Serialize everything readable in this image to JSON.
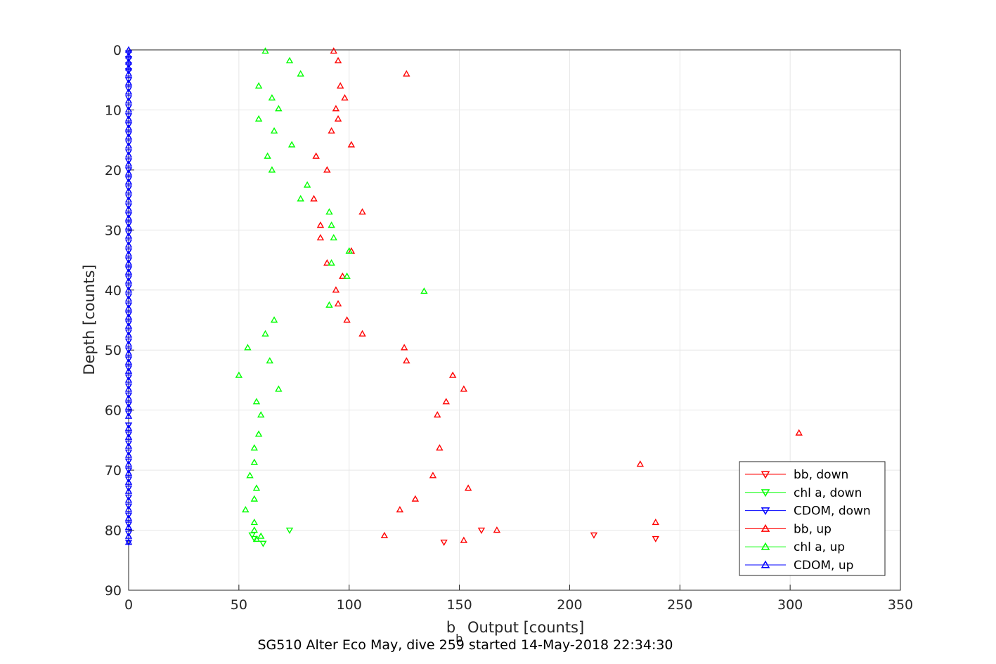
{
  "chart_data": {
    "type": "scatter",
    "title": "",
    "caption": "SG510 Alter Eco May, dive 259 started 14-May-2018 22:34:30",
    "xlabel_main": "b",
    "xlabel_sub": "b",
    "xlabel_rest": " Output [counts]",
    "ylabel": "Depth [counts]",
    "xlim": [
      0,
      350
    ],
    "ylim": [
      90,
      0
    ],
    "y_reversed": true,
    "grid": true,
    "legend_position": "bottom-right",
    "xticks": [
      0,
      50,
      100,
      150,
      200,
      250,
      300,
      350
    ],
    "yticks": [
      0,
      10,
      20,
      30,
      40,
      50,
      60,
      70,
      80,
      90
    ],
    "colors": {
      "red": "#ff0000",
      "green": "#00ff00",
      "blue": "#0000ff",
      "grid": "#e6e6e6",
      "axis": "#262626"
    },
    "series": [
      {
        "name": "bb, down",
        "marker": "down",
        "color": "#ff0000",
        "points": [
          [
            143,
            82.0
          ],
          [
            211,
            80.8
          ],
          [
            239,
            81.4
          ],
          [
            160,
            80.0
          ]
        ]
      },
      {
        "name": "chl a, down",
        "marker": "down",
        "color": "#00ff00",
        "points": [
          [
            57,
            81.4
          ],
          [
            61,
            82.2
          ],
          [
            73,
            80.0
          ],
          [
            56,
            80.8
          ]
        ]
      },
      {
        "name": "CDOM, down",
        "marker": "down",
        "color": "#0000ff",
        "points": [
          [
            0,
            0.5
          ],
          [
            0,
            1.5
          ],
          [
            0,
            2.5
          ],
          [
            0,
            3.5
          ],
          [
            0,
            5
          ],
          [
            0,
            6.5
          ],
          [
            0,
            8
          ],
          [
            0,
            9.5
          ],
          [
            0,
            11
          ],
          [
            0,
            12.5
          ],
          [
            0,
            14
          ],
          [
            0,
            15.5
          ],
          [
            0,
            17
          ],
          [
            0,
            18.5
          ],
          [
            0,
            20
          ],
          [
            0,
            21.5
          ],
          [
            0,
            23
          ],
          [
            0,
            24.5
          ],
          [
            0,
            26
          ],
          [
            0,
            27.5
          ],
          [
            0,
            29
          ],
          [
            0,
            30.5
          ],
          [
            0,
            32
          ],
          [
            0,
            33.5
          ],
          [
            0,
            35
          ],
          [
            0,
            36.5
          ],
          [
            0,
            38
          ],
          [
            0,
            39.5
          ],
          [
            0,
            41
          ],
          [
            0,
            42.5
          ],
          [
            0,
            44
          ],
          [
            0,
            45.5
          ],
          [
            0,
            47
          ],
          [
            0,
            48.5
          ],
          [
            0,
            50
          ],
          [
            0,
            51.5
          ],
          [
            0,
            53
          ],
          [
            0,
            54.5
          ],
          [
            0,
            56
          ],
          [
            0,
            57.5
          ],
          [
            0,
            59
          ],
          [
            0,
            60.5
          ],
          [
            0,
            62.5
          ],
          [
            0,
            64
          ],
          [
            0,
            65.5
          ],
          [
            0,
            67
          ],
          [
            0,
            68.5
          ],
          [
            0,
            70
          ],
          [
            0,
            71.5
          ],
          [
            0,
            73
          ],
          [
            0,
            74.5
          ],
          [
            0,
            76
          ],
          [
            0,
            77.5
          ],
          [
            0,
            79
          ],
          [
            0,
            80.5
          ],
          [
            0,
            82
          ]
        ]
      },
      {
        "name": "bb, up",
        "marker": "up",
        "color": "#ff0000",
        "points": [
          [
            93,
            0.2
          ],
          [
            95,
            1.8
          ],
          [
            126,
            4.0
          ],
          [
            96,
            6.0
          ],
          [
            98,
            8.0
          ],
          [
            94,
            9.8
          ],
          [
            95,
            11.5
          ],
          [
            92,
            13.5
          ],
          [
            101,
            15.8
          ],
          [
            85,
            17.7
          ],
          [
            90,
            20.0
          ],
          [
            84,
            24.8
          ],
          [
            106,
            27.0
          ],
          [
            87,
            29.2
          ],
          [
            87,
            31.3
          ],
          [
            101,
            33.5
          ],
          [
            90,
            35.5
          ],
          [
            97,
            37.7
          ],
          [
            94,
            40.0
          ],
          [
            95,
            42.3
          ],
          [
            99,
            45.0
          ],
          [
            106,
            47.3
          ],
          [
            125,
            49.6
          ],
          [
            126,
            51.8
          ],
          [
            147,
            54.2
          ],
          [
            152,
            56.5
          ],
          [
            144,
            58.6
          ],
          [
            140,
            60.8
          ],
          [
            141,
            66.3
          ],
          [
            304,
            63.8
          ],
          [
            232,
            69.0
          ],
          [
            138,
            70.9
          ],
          [
            154,
            73.0
          ],
          [
            130,
            74.8
          ],
          [
            123,
            76.6
          ],
          [
            239,
            78.7
          ],
          [
            167,
            80.0
          ],
          [
            116,
            80.9
          ],
          [
            152,
            81.7
          ]
        ]
      },
      {
        "name": "chl a, up",
        "marker": "up",
        "color": "#00ff00",
        "points": [
          [
            62,
            0.2
          ],
          [
            73,
            1.8
          ],
          [
            78,
            4.0
          ],
          [
            59,
            6.0
          ],
          [
            65,
            8.0
          ],
          [
            68,
            9.8
          ],
          [
            59,
            11.5
          ],
          [
            66,
            13.5
          ],
          [
            74,
            15.8
          ],
          [
            63,
            17.7
          ],
          [
            65,
            20.0
          ],
          [
            81,
            22.5
          ],
          [
            78,
            24.8
          ],
          [
            91,
            27.0
          ],
          [
            92,
            29.2
          ],
          [
            93,
            31.3
          ],
          [
            100,
            33.5
          ],
          [
            92,
            35.5
          ],
          [
            99,
            37.7
          ],
          [
            134,
            40.2
          ],
          [
            91,
            42.5
          ],
          [
            66,
            45.0
          ],
          [
            62,
            47.3
          ],
          [
            54,
            49.6
          ],
          [
            64,
            51.8
          ],
          [
            50,
            54.2
          ],
          [
            68,
            56.5
          ],
          [
            58,
            58.6
          ],
          [
            60,
            60.8
          ],
          [
            59,
            64.0
          ],
          [
            57,
            66.3
          ],
          [
            57,
            68.7
          ],
          [
            55,
            70.9
          ],
          [
            58,
            73.0
          ],
          [
            57,
            74.8
          ],
          [
            53,
            76.6
          ],
          [
            57,
            78.7
          ],
          [
            57,
            80.0
          ],
          [
            60,
            81.0
          ],
          [
            58,
            81.5
          ]
        ]
      },
      {
        "name": "CDOM, up",
        "marker": "up",
        "color": "#0000ff",
        "points": [
          [
            0,
            0
          ],
          [
            0,
            1
          ],
          [
            0,
            2
          ],
          [
            0,
            3
          ],
          [
            0,
            4
          ],
          [
            0,
            5.5
          ],
          [
            0,
            7
          ],
          [
            0,
            8.5
          ],
          [
            0,
            10
          ],
          [
            0,
            11.5
          ],
          [
            0,
            13
          ],
          [
            0,
            14.5
          ],
          [
            0,
            16
          ],
          [
            0,
            17.5
          ],
          [
            0,
            19
          ],
          [
            0,
            20.5
          ],
          [
            0,
            22
          ],
          [
            0,
            23.5
          ],
          [
            0,
            25
          ],
          [
            0,
            26.5
          ],
          [
            0,
            28
          ],
          [
            0,
            29.5
          ],
          [
            0,
            31
          ],
          [
            0,
            32.5
          ],
          [
            0,
            34
          ],
          [
            0,
            35.5
          ],
          [
            0,
            37
          ],
          [
            0,
            38.5
          ],
          [
            0,
            40
          ],
          [
            0,
            41.5
          ],
          [
            0,
            43
          ],
          [
            0,
            44.5
          ],
          [
            0,
            46
          ],
          [
            0,
            47.5
          ],
          [
            0,
            49
          ],
          [
            0,
            50.5
          ],
          [
            0,
            52
          ],
          [
            0,
            53.5
          ],
          [
            0,
            55
          ],
          [
            0,
            56.5
          ],
          [
            0,
            58
          ],
          [
            0,
            59.5
          ],
          [
            0,
            61
          ],
          [
            0,
            63
          ],
          [
            0,
            64.5
          ],
          [
            0,
            66
          ],
          [
            0,
            67.5
          ],
          [
            0,
            69
          ],
          [
            0,
            70.5
          ],
          [
            0,
            72
          ],
          [
            0,
            73.5
          ],
          [
            0,
            75
          ],
          [
            0,
            76.5
          ],
          [
            0,
            78
          ],
          [
            0,
            79.5
          ],
          [
            0,
            81
          ],
          [
            0,
            82
          ]
        ]
      }
    ]
  }
}
